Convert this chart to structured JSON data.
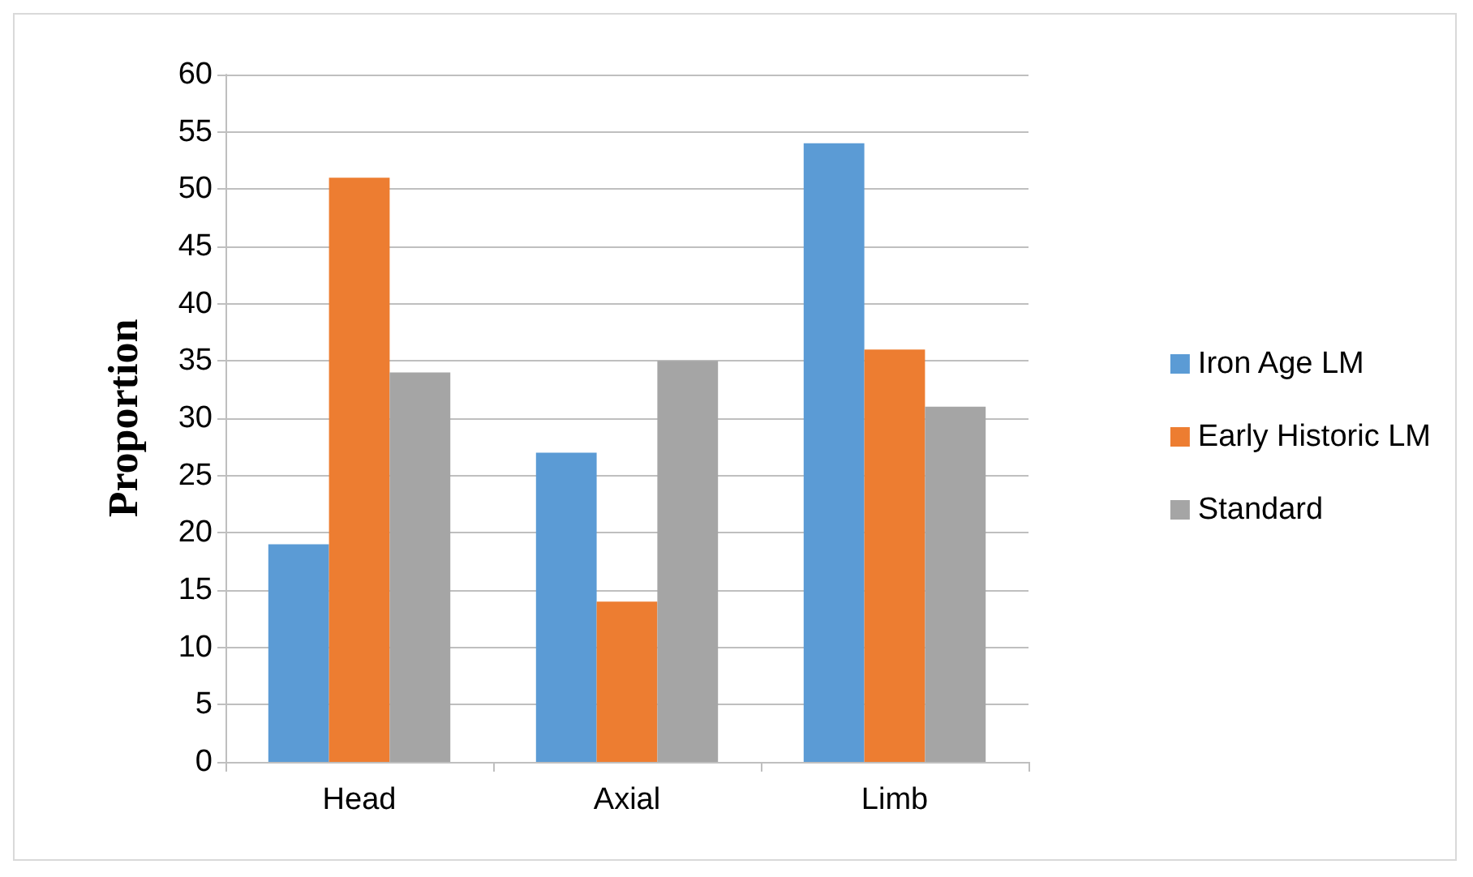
{
  "chart_data": {
    "type": "bar",
    "ylabel": "Proportion",
    "categories": [
      "Head",
      "Axial",
      "Limb"
    ],
    "series": [
      {
        "name": "Iron Age LM",
        "color": "#5b9bd5",
        "values": [
          19,
          27,
          54
        ]
      },
      {
        "name": "Early Historic LM",
        "color": "#ed7d31",
        "values": [
          51,
          14,
          36
        ]
      },
      {
        "name": "Standard",
        "color": "#a5a5a5",
        "values": [
          34,
          35,
          31
        ]
      }
    ],
    "ylim": [
      0,
      60
    ],
    "yticks": [
      0,
      5,
      10,
      15,
      20,
      25,
      30,
      35,
      40,
      45,
      50,
      55,
      60
    ],
    "grid": "y",
    "legend": "right"
  }
}
